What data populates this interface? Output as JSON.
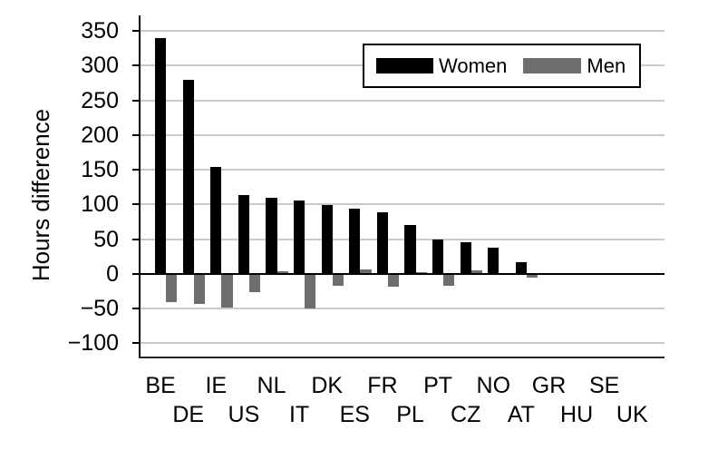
{
  "figure": {
    "ylabel": "Hours difference"
  },
  "legend": {
    "women_label": "Women",
    "men_label": "Men"
  },
  "colors": {
    "women_bar": "#000000",
    "men_bar": "#6e6e6e",
    "gridline": "#c9c9c9",
    "axis": "#000000"
  },
  "chart_data": {
    "type": "bar",
    "title": "",
    "xlabel": "",
    "ylabel": "Hours difference",
    "categories": [
      "BE",
      "DE",
      "IE",
      "US",
      "NL",
      "IT",
      "DK",
      "ES",
      "FR",
      "PL",
      "PT",
      "CZ",
      "NO",
      "AT",
      "GR",
      "HU",
      "SE",
      "UK"
    ],
    "series": [
      {
        "name": "Women",
        "color": "#000000",
        "values": [
          340,
          279,
          154,
          113,
          110,
          106,
          99,
          94,
          89,
          70,
          49,
          46,
          38,
          17,
          0,
          0,
          0,
          0
        ]
      },
      {
        "name": "Men",
        "color": "#6e6e6e",
        "values": [
          -41,
          -44,
          -49,
          -27,
          3,
          -50,
          -18,
          6,
          -19,
          2,
          -18,
          5,
          -2,
          -6,
          0,
          0,
          0,
          0
        ]
      }
    ],
    "yticks": [
      350,
      300,
      250,
      200,
      150,
      100,
      50,
      0,
      -50,
      -100
    ],
    "ylim": [
      -122,
      371
    ],
    "grid": true,
    "legend_position": "top-right",
    "x_label_rows": "alternating"
  }
}
